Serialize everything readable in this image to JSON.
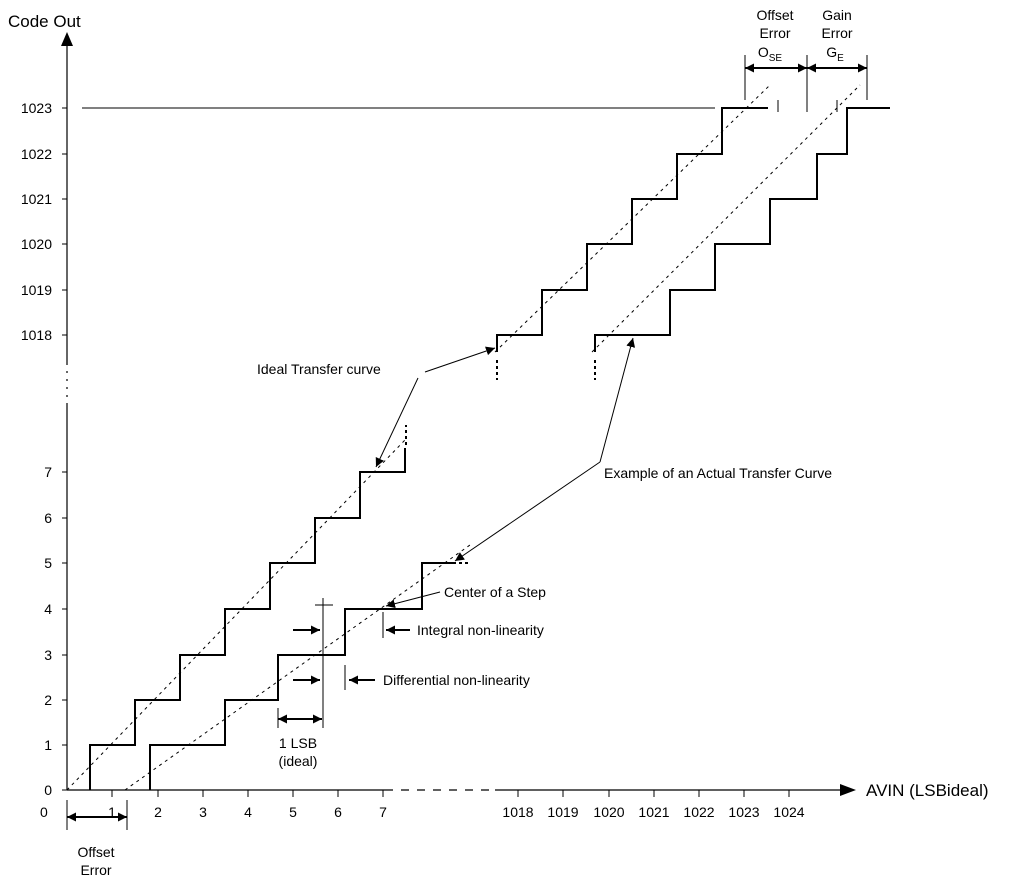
{
  "axes": {
    "y_title": "Code Out",
    "x_title": "AVIN (LSBideal)",
    "origin_label": "0",
    "y_ticks_low": [
      "0",
      "1",
      "2",
      "3",
      "4",
      "5",
      "6",
      "7"
    ],
    "y_ticks_high": [
      "1018",
      "1019",
      "1020",
      "1021",
      "1022",
      "1023"
    ],
    "x_ticks_low": [
      "1",
      "2",
      "3",
      "4",
      "5",
      "6",
      "7"
    ],
    "x_ticks_high": [
      "1018",
      "1019",
      "1020",
      "1021",
      "1022",
      "1023",
      "1024"
    ]
  },
  "labels": {
    "offset_error_top": [
      "Offset",
      "Error"
    ],
    "offset_error_symbol": "O",
    "offset_error_sub": "SE",
    "gain_error_top": [
      "Gain",
      "Error"
    ],
    "gain_error_symbol": "G",
    "gain_error_sub": "E",
    "ideal_curve": "Ideal Transfer curve",
    "actual_curve": "Example of an Actual Transfer Curve",
    "center_step": "Center of a Step",
    "inl": "Integral non-linearity",
    "dnl": "Differential non-linearity",
    "lsb": [
      "1 LSB",
      "(ideal)"
    ],
    "offset_error_bottom": [
      "Offset",
      "Error"
    ]
  }
}
